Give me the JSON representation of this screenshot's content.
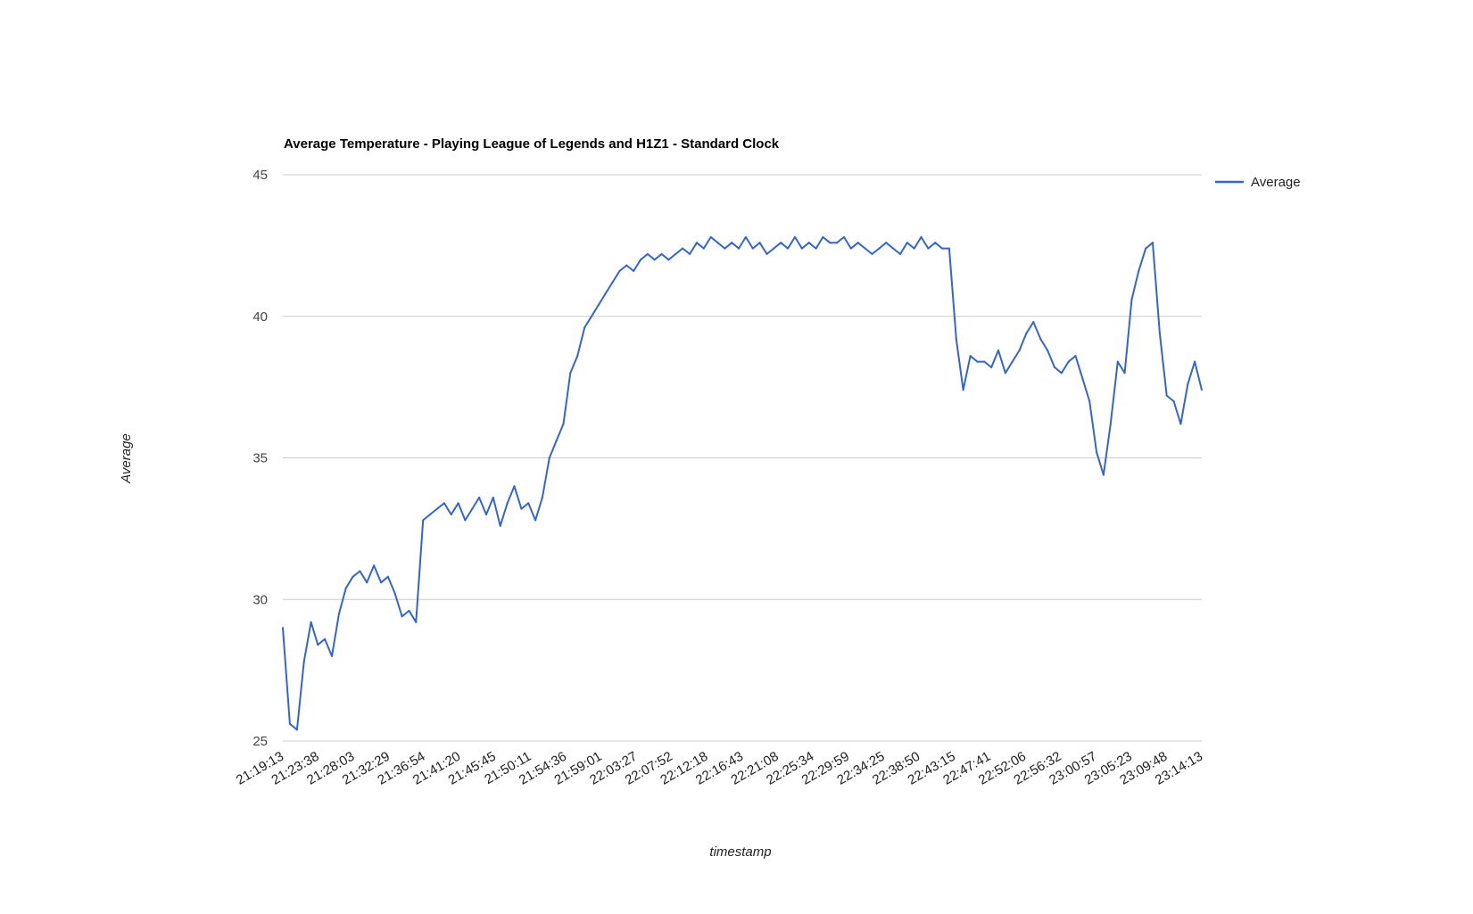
{
  "chart_data": {
    "type": "line",
    "title": "Average Temperature - Playing League of Legends and H1Z1 - Standard Clock",
    "xlabel": "timestamp",
    "ylabel": "Average",
    "ylim": [
      25,
      45
    ],
    "y_ticks": [
      25,
      30,
      35,
      40,
      45
    ],
    "x_tick_labels": [
      "21:19:13",
      "21:23:38",
      "21:28:03",
      "21:32:29",
      "21:36:54",
      "21:41:20",
      "21:45:45",
      "21:50:11",
      "21:54:36",
      "21:59:01",
      "22:03:27",
      "22:07:52",
      "22:12:18",
      "22:16:43",
      "22:21:08",
      "22:25:34",
      "22:29:59",
      "22:34:25",
      "22:38:50",
      "22:43:15",
      "22:47:41",
      "22:52:06",
      "22:56:32",
      "23:00:57",
      "23:05:23",
      "23:09:48",
      "23:14:13"
    ],
    "grid": true,
    "legend_position": "right",
    "series_color": "#3366cc",
    "series": [
      {
        "name": "Average",
        "x": [
          "21:19:13",
          "21:20:06",
          "21:21:00",
          "21:21:53",
          "21:22:46",
          "21:23:38",
          "21:24:31",
          "21:25:24",
          "21:26:18",
          "21:27:10",
          "21:28:03",
          "21:28:56",
          "21:29:49",
          "21:30:42",
          "21:31:36",
          "21:32:29",
          "21:33:22",
          "21:34:15",
          "21:35:08",
          "21:36:01",
          "21:36:54",
          "21:37:47",
          "21:38:40",
          "21:39:34",
          "21:40:27",
          "21:41:20",
          "21:42:13",
          "21:43:06",
          "21:43:59",
          "21:44:52",
          "21:45:45",
          "21:46:38",
          "21:47:32",
          "21:48:25",
          "21:49:18",
          "21:50:11",
          "21:51:04",
          "21:51:57",
          "21:52:50",
          "21:53:43",
          "21:54:36",
          "21:55:29",
          "21:56:22",
          "21:57:16",
          "21:58:09",
          "21:59:01",
          "21:59:54",
          "22:00:47",
          "22:01:41",
          "22:02:34",
          "22:03:27",
          "22:04:20",
          "22:05:13",
          "22:06:06",
          "22:06:59",
          "22:07:52",
          "22:08:45",
          "22:09:38",
          "22:10:32",
          "22:11:25",
          "22:12:18",
          "22:13:11",
          "22:14:04",
          "22:14:57",
          "22:15:50",
          "22:16:43",
          "22:17:36",
          "22:18:29",
          "22:19:22",
          "22:20:15",
          "22:21:08",
          "22:22:01",
          "22:22:54",
          "22:23:48",
          "22:24:41",
          "22:25:34",
          "22:26:27",
          "22:27:20",
          "22:28:13",
          "22:29:06",
          "22:29:59",
          "22:30:52",
          "22:31:45",
          "22:32:39",
          "22:33:32",
          "22:34:25",
          "22:35:18",
          "22:36:11",
          "22:37:04",
          "22:37:57",
          "22:38:50",
          "22:39:43",
          "22:40:36",
          "22:41:29",
          "22:42:22",
          "22:43:15",
          "22:44:08",
          "22:45:01",
          "22:45:55",
          "22:46:48",
          "22:47:41",
          "22:48:34",
          "22:49:27",
          "22:50:20",
          "22:51:13",
          "22:52:06",
          "22:52:59",
          "22:53:52",
          "22:54:46",
          "22:55:39",
          "22:56:32",
          "22:57:25",
          "22:58:18",
          "22:59:11",
          "23:00:04",
          "23:00:57",
          "23:01:50",
          "23:02:43",
          "23:03:36",
          "23:04:30",
          "23:05:23",
          "23:06:16",
          "23:07:09",
          "23:08:02",
          "23:08:55",
          "23:09:48",
          "23:10:41",
          "23:11:34",
          "23:12:27",
          "23:13:20",
          "23:14:13",
          "23:15:06"
        ],
        "values": [
          29.0,
          25.6,
          25.4,
          27.8,
          29.2,
          28.4,
          28.6,
          28.0,
          29.5,
          30.4,
          30.8,
          31.0,
          30.6,
          31.2,
          30.6,
          30.8,
          30.2,
          29.4,
          29.6,
          29.2,
          32.8,
          33.0,
          33.2,
          33.4,
          33.0,
          33.4,
          32.8,
          33.2,
          33.6,
          33.0,
          33.6,
          32.6,
          33.4,
          34.0,
          33.2,
          33.4,
          32.8,
          33.6,
          35.0,
          35.6,
          36.2,
          38.0,
          38.6,
          39.6,
          40.0,
          40.4,
          40.8,
          41.2,
          41.6,
          41.8,
          41.6,
          42.0,
          42.2,
          42.0,
          42.2,
          42.0,
          42.2,
          42.4,
          42.2,
          42.6,
          42.4,
          42.8,
          42.6,
          42.4,
          42.6,
          42.4,
          42.8,
          42.4,
          42.6,
          42.2,
          42.4,
          42.6,
          42.4,
          42.8,
          42.4,
          42.6,
          42.4,
          42.8,
          42.6,
          42.6,
          42.8,
          42.4,
          42.6,
          42.4,
          42.2,
          42.4,
          42.6,
          42.4,
          42.2,
          42.6,
          42.4,
          42.8,
          42.4,
          42.6,
          42.4,
          42.4,
          39.2,
          37.4,
          38.6,
          38.4,
          38.4,
          38.2,
          38.8,
          38.0,
          38.4,
          38.8,
          39.4,
          39.8,
          39.2,
          38.8,
          38.2,
          38.0,
          38.4,
          38.6,
          37.8,
          37.0,
          35.2,
          34.4,
          36.2,
          38.4,
          38.0,
          40.6,
          41.6,
          42.4,
          42.6,
          39.4,
          37.2,
          37.0,
          36.2,
          37.6,
          38.4,
          37.4
        ]
      }
    ]
  }
}
